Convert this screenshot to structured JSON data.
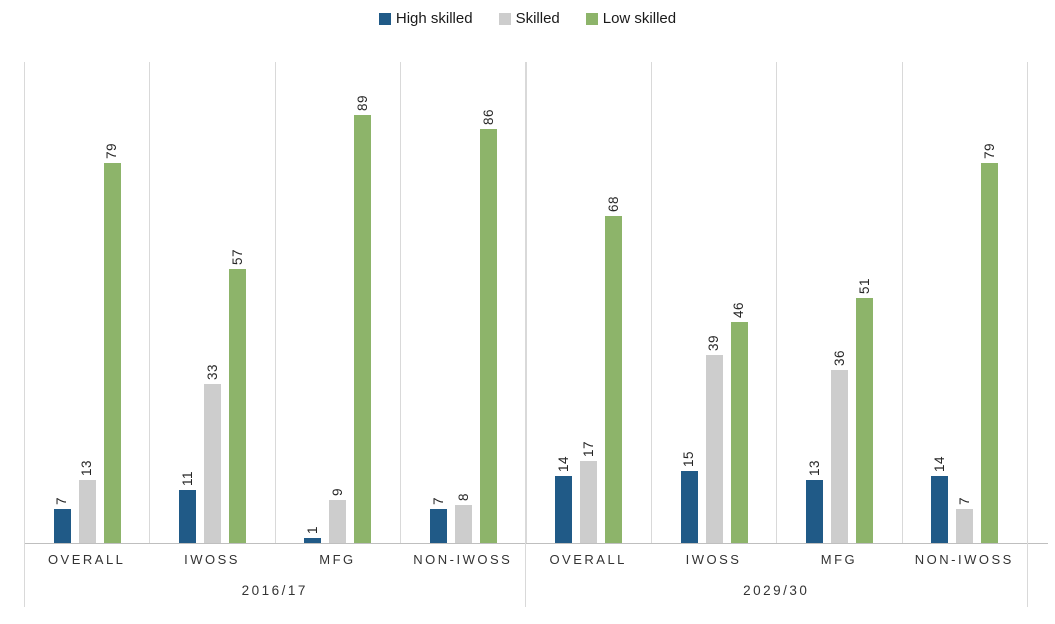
{
  "chart_data": {
    "type": "bar",
    "title": "",
    "xlabel": "",
    "ylabel": "",
    "ylim": [
      0,
      100
    ],
    "grid": "off",
    "legend_position": "top",
    "data_label_style": "rotated vertical, reads bottom-to-top, above each bar",
    "groups": [
      "2016/17",
      "2029/30"
    ],
    "categories_per_group": [
      "OVERALL",
      "IWOSS",
      "MFG",
      "NON-IWOSS"
    ],
    "series": [
      {
        "name": "High skilled",
        "slug": "high-skilled",
        "color": "#205a87",
        "values": {
          "2016/17": [
            7,
            11,
            1,
            7
          ],
          "2029/30": [
            14,
            15,
            13,
            14
          ]
        }
      },
      {
        "name": "Skilled",
        "slug": "skilled",
        "color": "#cdcdcd",
        "values": {
          "2016/17": [
            13,
            33,
            9,
            8
          ],
          "2029/30": [
            17,
            39,
            36,
            7
          ]
        }
      },
      {
        "name": "Low skilled",
        "slug": "low-skilled",
        "color": "#8db46a",
        "values": {
          "2016/17": [
            79,
            57,
            89,
            86
          ],
          "2029/30": [
            68,
            46,
            51,
            79
          ]
        }
      }
    ]
  },
  "colors": {
    "axis_line": "#bfbfbf",
    "divider_line": "#d9d9d9",
    "text": "#262626",
    "background": "#ffffff"
  }
}
